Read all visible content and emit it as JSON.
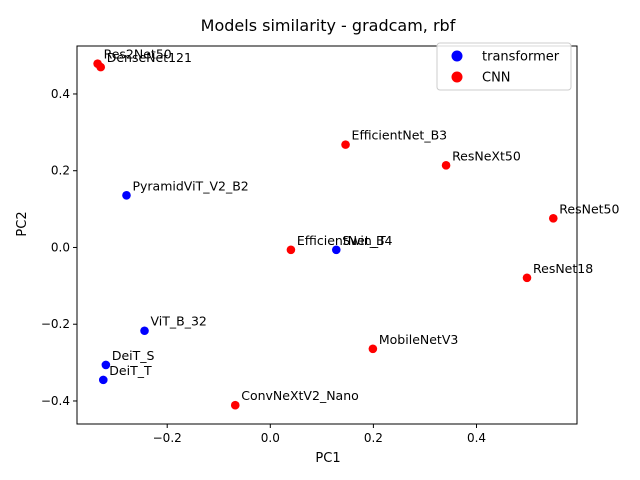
{
  "chart_data": {
    "type": "scatter",
    "title": "Models similarity - gradcam, rbf",
    "xlabel": "PC1",
    "ylabel": "PC2",
    "xlim": [
      -0.375,
      0.595
    ],
    "ylim": [
      -0.46,
      0.525
    ],
    "xticks": [
      -0.2,
      0.0,
      0.2,
      0.4
    ],
    "xtick_labels": [
      "−0.2",
      "0.0",
      "0.2",
      "0.4"
    ],
    "yticks": [
      -0.4,
      -0.2,
      0.0,
      0.2,
      0.4
    ],
    "ytick_labels": [
      "−0.4",
      "−0.2",
      "0.0",
      "0.2",
      "0.4"
    ],
    "grid": false,
    "legend_position": "top-right",
    "series": [
      {
        "name": "transformer",
        "color": "#0000ff",
        "points": [
          {
            "label": "PyramidViT_V2_B2",
            "x": -0.279,
            "y": 0.136
          },
          {
            "label": "Swin_T",
            "x": 0.128,
            "y": -0.006
          },
          {
            "label": "ViT_B_32",
            "x": -0.244,
            "y": -0.217
          },
          {
            "label": "DeiT_S",
            "x": -0.319,
            "y": -0.306
          },
          {
            "label": "DeiT_T",
            "x": -0.324,
            "y": -0.345
          }
        ]
      },
      {
        "name": "CNN",
        "color": "#ff0000",
        "points": [
          {
            "label": "Res2Net50",
            "x": -0.335,
            "y": 0.479
          },
          {
            "label": "DenseNet121",
            "x": -0.329,
            "y": 0.47
          },
          {
            "label": "EfficientNet_B3",
            "x": 0.146,
            "y": 0.268
          },
          {
            "label": "ResNeXt50",
            "x": 0.341,
            "y": 0.214
          },
          {
            "label": "ResNet50",
            "x": 0.549,
            "y": 0.076
          },
          {
            "label": "EfficientNet_B4",
            "x": 0.04,
            "y": -0.006
          },
          {
            "label": "ResNet18",
            "x": 0.498,
            "y": -0.079
          },
          {
            "label": "MobileNetV3",
            "x": 0.199,
            "y": -0.264
          },
          {
            "label": "ConvNeXtV2_Nano",
            "x": -0.068,
            "y": -0.411
          }
        ]
      }
    ]
  }
}
